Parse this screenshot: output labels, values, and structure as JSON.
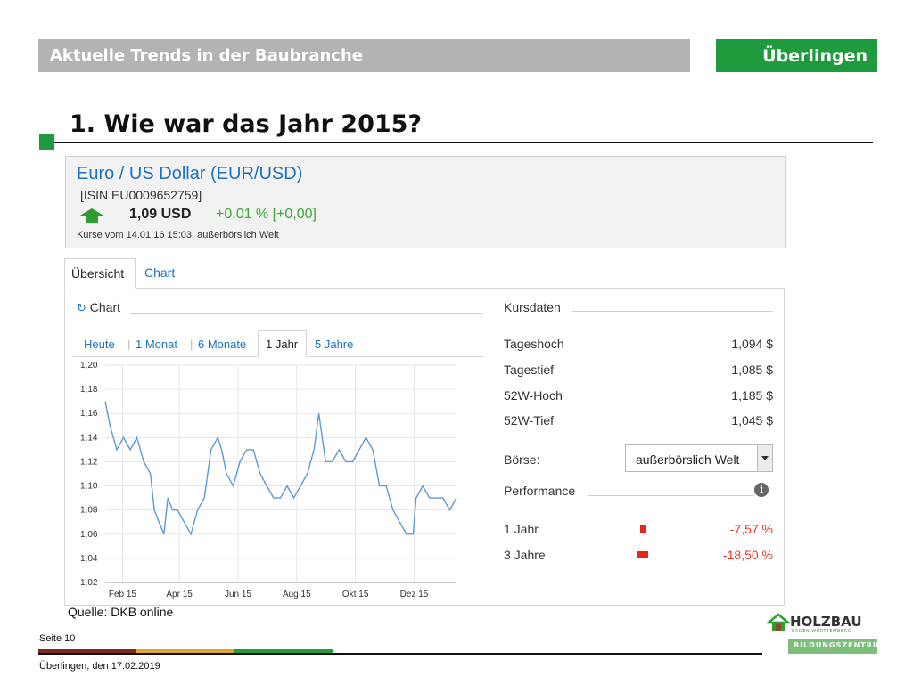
{
  "slide": {
    "header_title": "Aktuelle Trends in der Baubranche",
    "location": "Überlingen",
    "heading": "1. Wie war das Jahr 2015?",
    "source": "Quelle: DKB online",
    "page": "Seite 10",
    "footer_date": "Überlingen, den 17.02.2019",
    "stripe_colors": [
      "#7a2a1e",
      "#e0a52a",
      "#1f9a3d"
    ]
  },
  "quote": {
    "name": "Euro / US Dollar (EUR/USD)",
    "isin": "[ISIN EU0009652759]",
    "price": "1,09 USD",
    "change": "+0,01 % [+0,00]",
    "timestamp": "Kurse vom  14.01.16 15:03, außerbörslich Welt",
    "trend_icon": "up-arrow-icon"
  },
  "tabs": {
    "overview": "Übersicht",
    "chart": "Chart"
  },
  "chart_section": {
    "title": "Chart",
    "refresh_icon": "refresh-icon",
    "ranges": [
      "Heute",
      "1 Monat",
      "6 Monate",
      "1 Jahr",
      "5 Jahre"
    ],
    "active_range": "1 Jahr"
  },
  "chart_data": {
    "type": "line",
    "xlabel": "",
    "ylabel": "",
    "x_ticks": [
      "Feb 15",
      "Apr 15",
      "Jun 15",
      "Aug 15",
      "Okt 15",
      "Dez 15"
    ],
    "y_ticks": [
      "1,20",
      "1,18",
      "1,16",
      "1,14",
      "1,12",
      "1,10",
      "1,08",
      "1,06",
      "1,04",
      "1,02"
    ],
    "ylim": [
      1.02,
      1.2
    ],
    "grid": true,
    "line_color": "#5b9bd5",
    "x": [
      "2015-01-14",
      "2015-01-19",
      "2015-01-26",
      "2015-02-02",
      "2015-02-09",
      "2015-02-16",
      "2015-02-23",
      "2015-03-02",
      "2015-03-06",
      "2015-03-11",
      "2015-03-16",
      "2015-03-20",
      "2015-03-25",
      "2015-03-30",
      "2015-04-06",
      "2015-04-13",
      "2015-04-20",
      "2015-04-27",
      "2015-05-04",
      "2015-05-11",
      "2015-05-15",
      "2015-05-20",
      "2015-05-27",
      "2015-06-03",
      "2015-06-10",
      "2015-06-17",
      "2015-06-24",
      "2015-07-01",
      "2015-07-08",
      "2015-07-15",
      "2015-07-22",
      "2015-07-29",
      "2015-08-05",
      "2015-08-12",
      "2015-08-19",
      "2015-08-24",
      "2015-08-31",
      "2015-09-07",
      "2015-09-14",
      "2015-09-21",
      "2015-09-28",
      "2015-10-05",
      "2015-10-12",
      "2015-10-19",
      "2015-10-26",
      "2015-11-02",
      "2015-11-09",
      "2015-11-16",
      "2015-11-23",
      "2015-11-30",
      "2015-12-03",
      "2015-12-10",
      "2015-12-17",
      "2015-12-24",
      "2015-12-31",
      "2016-01-07",
      "2016-01-14"
    ],
    "values": [
      1.17,
      1.15,
      1.13,
      1.14,
      1.13,
      1.14,
      1.12,
      1.11,
      1.08,
      1.07,
      1.06,
      1.09,
      1.08,
      1.08,
      1.07,
      1.06,
      1.08,
      1.09,
      1.13,
      1.14,
      1.13,
      1.11,
      1.1,
      1.12,
      1.13,
      1.13,
      1.11,
      1.1,
      1.09,
      1.09,
      1.1,
      1.09,
      1.1,
      1.11,
      1.13,
      1.16,
      1.12,
      1.12,
      1.13,
      1.12,
      1.12,
      1.13,
      1.14,
      1.13,
      1.1,
      1.1,
      1.08,
      1.07,
      1.06,
      1.06,
      1.09,
      1.1,
      1.09,
      1.09,
      1.09,
      1.08,
      1.09
    ]
  },
  "kursdaten": {
    "title": "Kursdaten",
    "rows": [
      {
        "label": "Tageshoch",
        "value": "1,094 $"
      },
      {
        "label": "Tagestief",
        "value": "1,085 $"
      },
      {
        "label": "52W-Hoch",
        "value": "1,185 $"
      },
      {
        "label": "52W-Tief",
        "value": "1,045 $"
      }
    ],
    "exchange_label": "Börse:",
    "exchange_value": "außerbörslich Welt"
  },
  "performance": {
    "title": "Performance",
    "info_icon": "info-icon",
    "rows": [
      {
        "label": "1 Jahr",
        "value": "-7,57 %",
        "pct": -7.57
      },
      {
        "label": "3 Jahre",
        "value": "-18,50 %",
        "pct": -18.5
      }
    ],
    "bar_color": "#e8261c"
  },
  "logo": {
    "name": "HOLZBAU",
    "sub": "BADEN-WÜRTTEMBERG",
    "center": "BILDUNGSZENTRUM"
  }
}
